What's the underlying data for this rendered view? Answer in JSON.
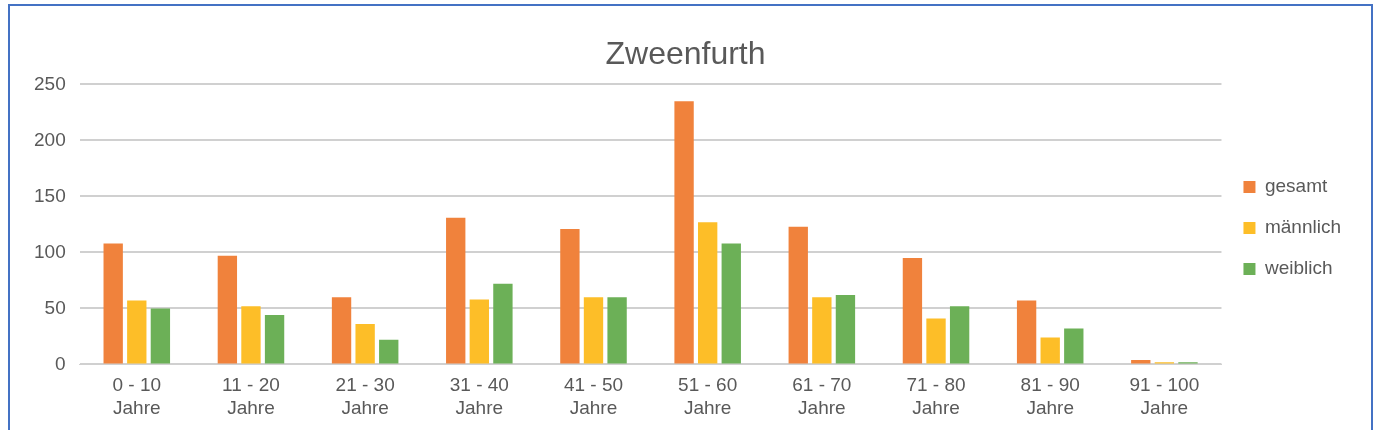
{
  "chart_data": {
    "type": "bar",
    "title": "Zweenfurth",
    "categories": [
      "0 - 10 Jahre",
      "11 - 20 Jahre",
      "21 - 30 Jahre",
      "31 - 40 Jahre",
      "41 - 50 Jahre",
      "51 - 60 Jahre",
      "61 - 70 Jahre",
      "71 - 80 Jahre",
      "81 - 90 Jahre",
      "91 - 100 Jahre"
    ],
    "series": [
      {
        "name": "gesamt",
        "color": "#f0823c",
        "values": [
          108,
          97,
          60,
          131,
          121,
          235,
          123,
          95,
          57,
          4
        ]
      },
      {
        "name": "männlich",
        "color": "#fdbe28",
        "values": [
          57,
          52,
          36,
          58,
          60,
          127,
          60,
          41,
          24,
          2
        ]
      },
      {
        "name": "weiblich",
        "color": "#6cb057",
        "values": [
          50,
          44,
          22,
          72,
          60,
          108,
          62,
          52,
          32,
          2
        ]
      }
    ],
    "ylim": [
      0,
      250
    ],
    "yticks": [
      0,
      50,
      100,
      150,
      200,
      250
    ],
    "grid": "y",
    "legend": "right"
  }
}
